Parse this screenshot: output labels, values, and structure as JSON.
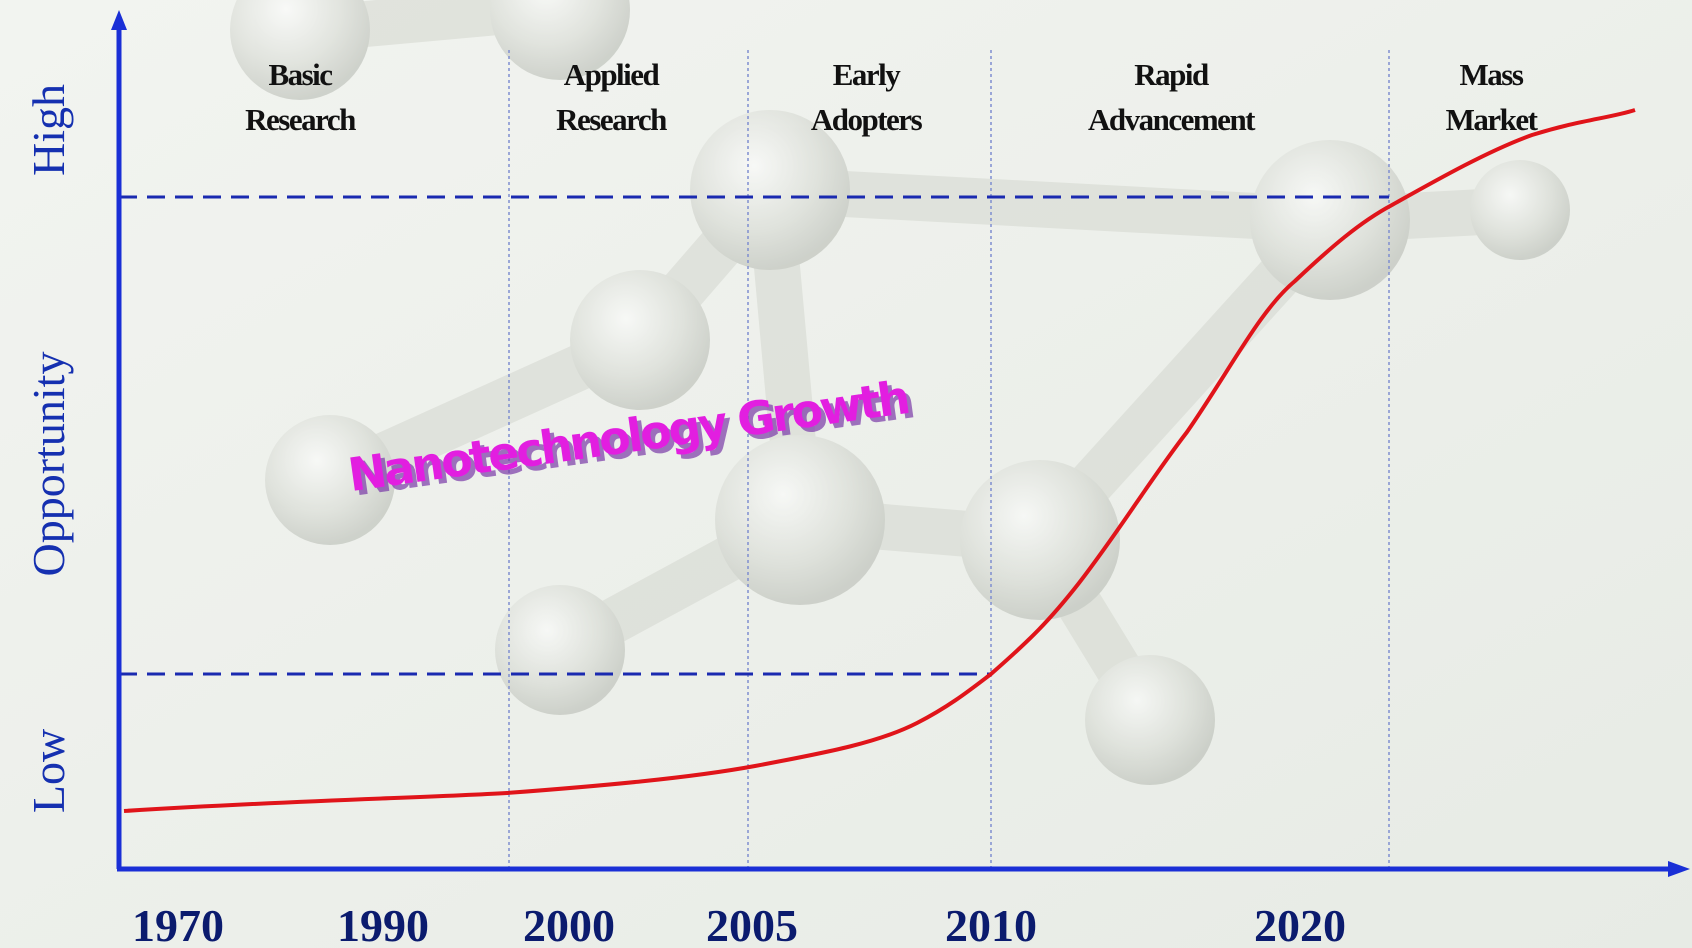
{
  "title": "Nanotechnology Growth",
  "stages": [
    [
      "Basic",
      "Research"
    ],
    [
      "Applied",
      "Research"
    ],
    [
      "Early",
      "Adopters"
    ],
    [
      "Rapid",
      "Advancement"
    ],
    [
      "Mass",
      "Market"
    ]
  ],
  "x_labels": [
    "1970",
    "1990",
    "2000",
    "2005",
    "2010",
    "2020"
  ],
  "y_axis": {
    "high": "High",
    "title": "Opportunity",
    "low": "Low"
  }
}
